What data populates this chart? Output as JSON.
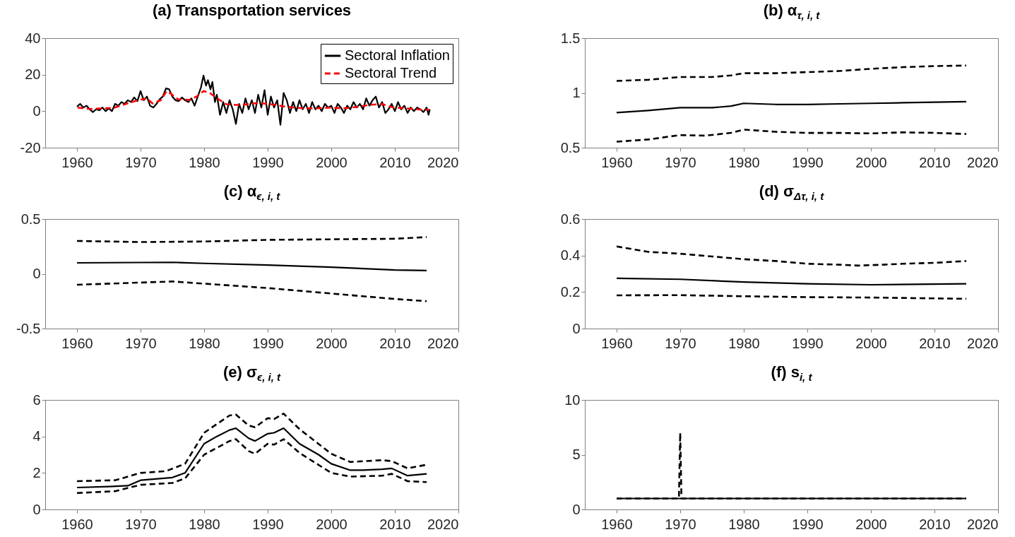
{
  "chart_data": [
    {
      "type": "line",
      "title": "(a) Transportation services",
      "xlim": [
        1955,
        2020
      ],
      "xticks": [
        1960,
        1970,
        1980,
        1990,
        2000,
        2010,
        2020
      ],
      "ylim": [
        -20,
        40
      ],
      "yticks": [
        -20,
        0,
        20,
        40
      ],
      "legend": "top right",
      "grid": false,
      "series": [
        {
          "name": "Sectoral Inflation",
          "color": "#000000",
          "line_style": "solid",
          "x": [
            1960,
            1960.5,
            1961,
            1961.5,
            1962,
            1962.5,
            1963,
            1963.5,
            1964,
            1964.5,
            1965,
            1965.5,
            1966,
            1966.5,
            1967,
            1967.5,
            1968,
            1968.5,
            1969,
            1969.5,
            1970,
            1970.5,
            1971,
            1971.5,
            1972,
            1972.5,
            1973,
            1973.5,
            1974,
            1974.5,
            1975,
            1975.5,
            1976,
            1976.5,
            1977,
            1977.5,
            1978,
            1978.5,
            1979,
            1979.5,
            1979.9,
            1980.3,
            1980.6,
            1981,
            1981.3,
            1981.7,
            1982,
            1982.5,
            1983,
            1983.5,
            1984,
            1984.5,
            1985,
            1985.5,
            1986,
            1986.5,
            1987,
            1987.5,
            1988,
            1988.5,
            1989,
            1989.5,
            1990,
            1990.5,
            1991,
            1991.5,
            1992,
            1992.5,
            1993,
            1993.5,
            1994,
            1994.5,
            1995,
            1995.5,
            1996,
            1996.5,
            1997,
            1997.5,
            1998,
            1998.5,
            1999,
            1999.5,
            2000,
            2000.5,
            2001,
            2001.5,
            2002,
            2002.5,
            2003,
            2003.5,
            2004,
            2004.5,
            2005,
            2005.5,
            2006,
            2006.5,
            2007,
            2007.5,
            2008,
            2008.5,
            2009,
            2009.5,
            2010,
            2010.5,
            2011,
            2011.5,
            2012,
            2012.5,
            2013,
            2013.5,
            2014,
            2014.5,
            2015,
            2015.3,
            2015.5
          ],
          "values": [
            2.5,
            4,
            2,
            3,
            1,
            -0.5,
            1,
            0.5,
            2,
            0,
            1.5,
            0,
            4,
            3,
            5,
            4,
            6,
            5,
            7.5,
            5.5,
            11,
            6,
            8,
            3,
            2,
            4,
            6.5,
            8,
            12.5,
            12,
            8,
            6,
            5.5,
            7.5,
            6,
            5,
            7,
            3,
            8,
            13,
            19.5,
            14,
            17,
            12,
            16,
            5,
            9,
            -2,
            5,
            -1,
            6,
            1,
            -7,
            4,
            -1,
            7,
            1,
            6,
            -1,
            9,
            2,
            11.5,
            -2,
            8,
            2,
            6,
            -7.5,
            10,
            6,
            -1,
            5,
            0,
            6,
            1,
            4,
            -1,
            5,
            1,
            3,
            0,
            4,
            2,
            3,
            -1,
            4,
            2,
            -1,
            3,
            1,
            5,
            2,
            4,
            1,
            7,
            3,
            6,
            8,
            2,
            5,
            -1,
            1,
            4,
            0,
            5,
            1,
            3,
            -1,
            2,
            0,
            2,
            1,
            -0.5,
            2,
            -2,
            1
          ]
        },
        {
          "name": "Sectoral Trend",
          "color": "#ff0000",
          "line_style": "dashed",
          "x": [
            1960.1,
            1962,
            1964,
            1965.8,
            1967.9,
            1969.6,
            1971,
            1971.9,
            1973.2,
            1974.1,
            1974.8,
            1975.9,
            1977.7,
            1978.8,
            1979.9,
            1980.8,
            1982.1,
            1983.5,
            1985.6,
            1988.4,
            1990.2,
            1992.4,
            1994.6,
            1997.3,
            2000,
            2001.8,
            2004,
            2006.2,
            2008,
            2009.8,
            2012,
            2014.3,
            2015.4
          ],
          "values": [
            2,
            1.2,
            1.5,
            1.8,
            4.2,
            6,
            7,
            4.2,
            6,
            11,
            9.5,
            6.5,
            6.2,
            8,
            11,
            10.2,
            6.9,
            3.8,
            3.3,
            4.5,
            3.9,
            2.7,
            1.8,
            1.5,
            2,
            1.5,
            2.3,
            3.5,
            3.9,
            2,
            1.5,
            0.8,
            0.8
          ]
        }
      ]
    },
    {
      "type": "line",
      "title": "(b) α$_{τ, i, t}$",
      "xlim": [
        1955,
        2020
      ],
      "xticks": [
        1960,
        1970,
        1980,
        1990,
        2000,
        2010,
        2020
      ],
      "ylim": [
        0.5,
        1.5
      ],
      "yticks": [
        0.5,
        1,
        1.5
      ],
      "grid": false,
      "series": [
        {
          "color": "#000000",
          "line_style": "dashed",
          "x": [
            1960,
            1965,
            1970,
            1975,
            1978,
            1980,
            1985,
            1990,
            1995,
            2000,
            2005,
            2010,
            2015
          ],
          "values": [
            1.11,
            1.12,
            1.145,
            1.145,
            1.16,
            1.18,
            1.18,
            1.19,
            1.2,
            1.22,
            1.235,
            1.245,
            1.25
          ]
        },
        {
          "color": "#000000",
          "line_style": "solid",
          "x": [
            1960,
            1965,
            1970,
            1975,
            1978,
            1980,
            1985,
            1990,
            1995,
            2000,
            2005,
            2010,
            2015
          ],
          "values": [
            0.82,
            0.84,
            0.865,
            0.865,
            0.88,
            0.905,
            0.895,
            0.895,
            0.9,
            0.905,
            0.91,
            0.915,
            0.92
          ]
        },
        {
          "color": "#000000",
          "line_style": "dashed",
          "x": [
            1960,
            1965,
            1970,
            1974,
            1978,
            1980,
            1985,
            1990,
            1995,
            2000,
            2005,
            2010,
            2015
          ],
          "values": [
            0.555,
            0.575,
            0.615,
            0.61,
            0.635,
            0.665,
            0.645,
            0.635,
            0.635,
            0.63,
            0.64,
            0.635,
            0.625
          ]
        }
      ]
    },
    {
      "type": "line",
      "title": "(c) α$_{ϵ, i, t}$",
      "xlim": [
        1955,
        2020
      ],
      "xticks": [
        1960,
        1970,
        1980,
        1990,
        2000,
        2010,
        2020
      ],
      "ylim": [
        -0.5,
        0.5
      ],
      "yticks": [
        -0.5,
        0,
        0.5
      ],
      "grid": false,
      "series": [
        {
          "color": "#000000",
          "line_style": "dashed",
          "x": [
            1960,
            1970,
            1980,
            1990,
            2000,
            2010,
            2015
          ],
          "values": [
            0.3,
            0.29,
            0.295,
            0.31,
            0.315,
            0.32,
            0.335
          ]
        },
        {
          "color": "#000000",
          "line_style": "solid",
          "x": [
            1960,
            1975,
            1980,
            1990,
            2000,
            2010,
            2015
          ],
          "values": [
            0.1,
            0.105,
            0.095,
            0.08,
            0.06,
            0.035,
            0.03
          ]
        },
        {
          "color": "#000000",
          "line_style": "dashed",
          "x": [
            1960,
            1970,
            1975,
            1980,
            1990,
            2000,
            2010,
            2015
          ],
          "values": [
            -0.1,
            -0.08,
            -0.07,
            -0.09,
            -0.13,
            -0.18,
            -0.23,
            -0.25
          ]
        }
      ]
    },
    {
      "type": "line",
      "title": "(d) σ$_{Δτ, i, t}$",
      "xlim": [
        1955,
        2020
      ],
      "xticks": [
        1960,
        1970,
        1980,
        1990,
        2000,
        2010,
        2020
      ],
      "ylim": [
        0,
        0.6
      ],
      "yticks": [
        0,
        0.2,
        0.4,
        0.6
      ],
      "grid": false,
      "series": [
        {
          "color": "#000000",
          "line_style": "dashed",
          "x": [
            1960,
            1965,
            1970,
            1975,
            1980,
            1985,
            1990,
            1995,
            1998,
            2002,
            2005,
            2010,
            2015
          ],
          "values": [
            0.45,
            0.42,
            0.41,
            0.395,
            0.38,
            0.37,
            0.355,
            0.35,
            0.345,
            0.35,
            0.355,
            0.36,
            0.37
          ]
        },
        {
          "color": "#000000",
          "line_style": "solid",
          "x": [
            1960,
            1970,
            1980,
            1990,
            2000,
            2015
          ],
          "values": [
            0.275,
            0.27,
            0.255,
            0.245,
            0.24,
            0.245
          ]
        },
        {
          "color": "#000000",
          "line_style": "dashed",
          "x": [
            1960,
            1970,
            1980,
            1990,
            2000,
            2015
          ],
          "values": [
            0.182,
            0.183,
            0.177,
            0.172,
            0.17,
            0.163
          ]
        }
      ]
    },
    {
      "type": "line",
      "title": "(e) σ$_{ϵ, i, t}$",
      "xlim": [
        1955,
        2020
      ],
      "xticks": [
        1960,
        1970,
        1980,
        1990,
        2000,
        2010,
        2020
      ],
      "ylim": [
        0,
        6
      ],
      "yticks": [
        0,
        2,
        4,
        6
      ],
      "grid": false,
      "series": [
        {
          "color": "#000000",
          "line_style": "dashed",
          "x": [
            1960,
            1966,
            1970,
            1974,
            1977,
            1980,
            1984,
            1985,
            1987,
            1988,
            1990,
            1991,
            1992.5,
            1995,
            2000,
            2003,
            2008,
            2009.5,
            2012,
            2015
          ],
          "values": [
            1.55,
            1.6,
            2.0,
            2.1,
            2.5,
            4.2,
            5.15,
            5.2,
            4.6,
            4.5,
            5.0,
            4.95,
            5.25,
            4.4,
            3.05,
            2.6,
            2.7,
            2.65,
            2.25,
            2.45
          ]
        },
        {
          "color": "#000000",
          "line_style": "solid",
          "x": [
            1960,
            1965,
            1968,
            1970,
            1975,
            1977,
            1980,
            1982,
            1984,
            1985,
            1987,
            1988,
            1990,
            1991,
            1992.5,
            1995,
            1998,
            2000,
            2003,
            2005,
            2008,
            2009.5,
            2012,
            2015
          ],
          "values": [
            1.2,
            1.25,
            1.3,
            1.6,
            1.75,
            2.0,
            3.6,
            4.0,
            4.35,
            4.45,
            3.9,
            3.75,
            4.15,
            4.2,
            4.45,
            3.6,
            3.0,
            2.5,
            2.15,
            2.15,
            2.2,
            2.25,
            1.85,
            1.95
          ]
        },
        {
          "color": "#000000",
          "line_style": "dashed",
          "x": [
            1960,
            1966,
            1970,
            1975,
            1977,
            1980,
            1984,
            1985,
            1987,
            1988,
            1990,
            1991,
            1992.5,
            1995,
            2000,
            2003,
            2008,
            2009.5,
            2012,
            2015
          ],
          "values": [
            0.9,
            1.0,
            1.35,
            1.45,
            1.7,
            3.0,
            3.75,
            3.85,
            3.2,
            3.05,
            3.6,
            3.55,
            3.85,
            3.1,
            2.0,
            1.8,
            1.85,
            1.95,
            1.55,
            1.5
          ]
        }
      ]
    },
    {
      "type": "line",
      "title": "(f) s$_{i, t}$",
      "xlim": [
        1955,
        2020
      ],
      "xticks": [
        1960,
        1970,
        1980,
        1990,
        2000,
        2010,
        2020
      ],
      "ylim": [
        0,
        10
      ],
      "yticks": [
        0,
        5,
        10
      ],
      "grid": false,
      "series": [
        {
          "color": "#000000",
          "line_style": "dashed",
          "x": [
            1960,
            1969.8,
            1970,
            1970.2,
            2015
          ],
          "values": [
            1,
            1,
            7,
            1,
            1
          ]
        },
        {
          "color": "#000000",
          "line_style": "solid",
          "x": [
            1960,
            2015
          ],
          "values": [
            1,
            1
          ]
        }
      ]
    }
  ]
}
